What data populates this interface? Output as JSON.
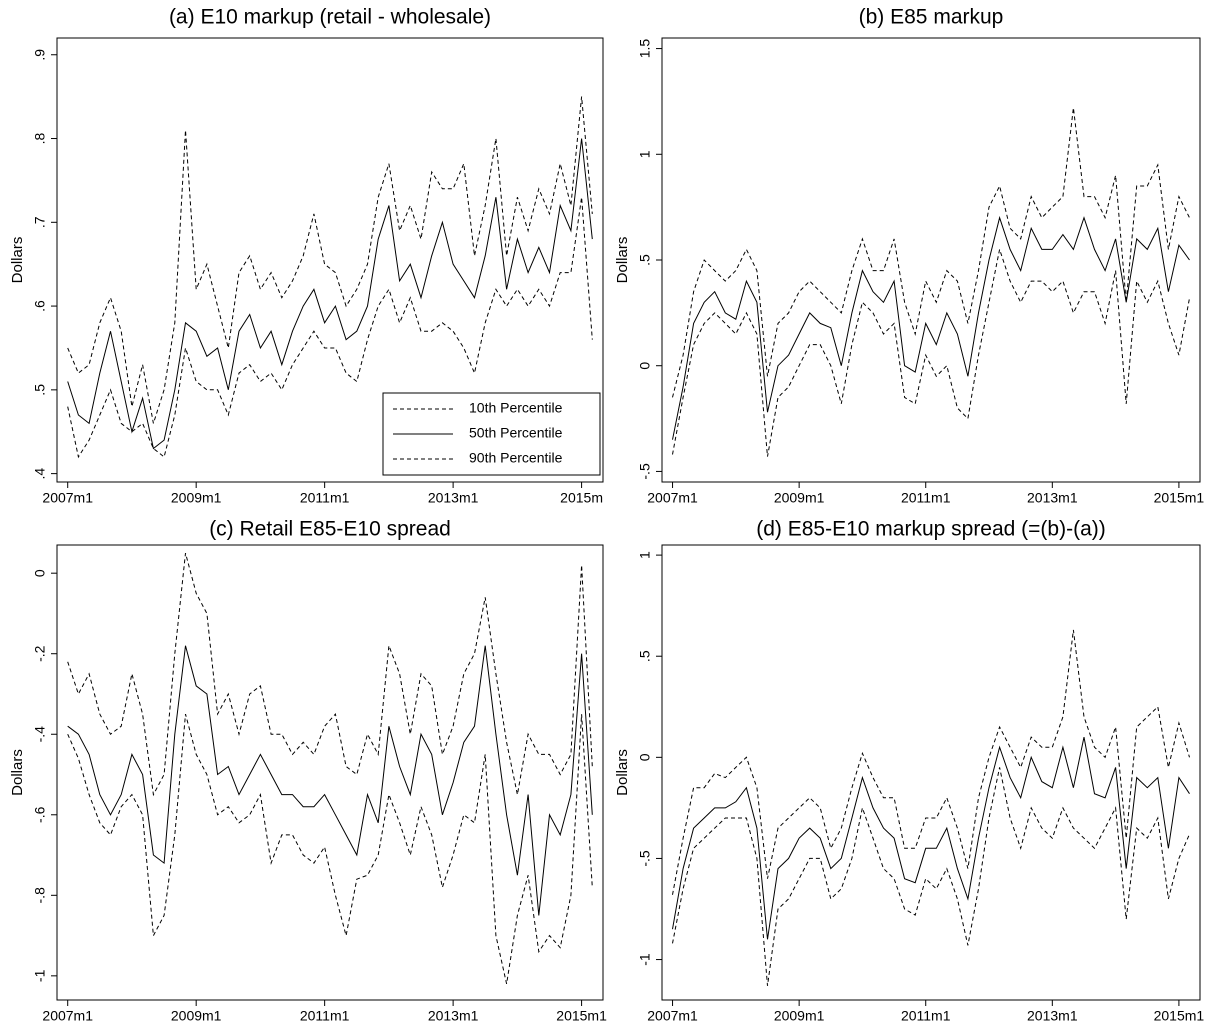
{
  "chart_data": [
    {
      "type": "line",
      "title": "(a) E10 markup (retail - wholesale)",
      "y_label": "Dollars",
      "legend": "lower right",
      "x": [
        0,
        2,
        4,
        6,
        8,
        10,
        12,
        14,
        16,
        18,
        20,
        22,
        24,
        26,
        28,
        30,
        32,
        34,
        36,
        38,
        40,
        42,
        44,
        46,
        48,
        50,
        52,
        54,
        56,
        58,
        60,
        62,
        64,
        66,
        68,
        70,
        72,
        74,
        76,
        78,
        80,
        82,
        84,
        86,
        88,
        90,
        92,
        94,
        96,
        98
      ],
      "xlim": [
        -2,
        100
      ],
      "xticks": [
        {
          "value": 0,
          "label": "2007m1"
        },
        {
          "value": 24,
          "label": "2009m1"
        },
        {
          "value": 48,
          "label": "2011m1"
        },
        {
          "value": 72,
          "label": "2013m1"
        },
        {
          "value": 96,
          "label": "2015m"
        }
      ],
      "ylim": [
        0.39,
        0.92
      ],
      "yticks": [
        {
          "value": 0.4,
          "label": ".4"
        },
        {
          "value": 0.5,
          "label": ".5"
        },
        {
          "value": 0.6,
          "label": ".6"
        },
        {
          "value": 0.7,
          "label": ".7"
        },
        {
          "value": 0.8,
          "label": ".8"
        },
        {
          "value": 0.9,
          "label": ".9"
        }
      ],
      "series": [
        {
          "name": "10th Percentile",
          "color": "#000000",
          "style": "dashed",
          "values": [
            0.48,
            0.42,
            0.44,
            0.47,
            0.5,
            0.46,
            0.45,
            0.46,
            0.43,
            0.42,
            0.47,
            0.55,
            0.51,
            0.5,
            0.5,
            0.47,
            0.52,
            0.53,
            0.51,
            0.52,
            0.5,
            0.53,
            0.55,
            0.57,
            0.55,
            0.55,
            0.52,
            0.51,
            0.56,
            0.6,
            0.62,
            0.58,
            0.61,
            0.57,
            0.57,
            0.58,
            0.57,
            0.55,
            0.52,
            0.58,
            0.62,
            0.6,
            0.62,
            0.6,
            0.62,
            0.6,
            0.64,
            0.64,
            0.73,
            0.56
          ]
        },
        {
          "name": "50th Percentile",
          "color": "#000000",
          "style": "solid",
          "values": [
            0.51,
            0.47,
            0.46,
            0.52,
            0.57,
            0.51,
            0.45,
            0.49,
            0.43,
            0.44,
            0.5,
            0.58,
            0.57,
            0.54,
            0.55,
            0.5,
            0.57,
            0.59,
            0.55,
            0.57,
            0.53,
            0.57,
            0.6,
            0.62,
            0.58,
            0.6,
            0.56,
            0.57,
            0.6,
            0.68,
            0.72,
            0.63,
            0.65,
            0.61,
            0.66,
            0.7,
            0.65,
            0.63,
            0.61,
            0.66,
            0.73,
            0.62,
            0.68,
            0.64,
            0.67,
            0.64,
            0.72,
            0.69,
            0.8,
            0.68
          ]
        },
        {
          "name": "90th Percentile",
          "color": "#000000",
          "style": "dashed",
          "values": [
            0.55,
            0.52,
            0.53,
            0.58,
            0.61,
            0.57,
            0.48,
            0.53,
            0.46,
            0.5,
            0.58,
            0.81,
            0.62,
            0.65,
            0.6,
            0.55,
            0.64,
            0.66,
            0.62,
            0.64,
            0.61,
            0.63,
            0.66,
            0.71,
            0.65,
            0.64,
            0.6,
            0.62,
            0.65,
            0.73,
            0.77,
            0.69,
            0.72,
            0.68,
            0.76,
            0.74,
            0.74,
            0.77,
            0.66,
            0.72,
            0.8,
            0.66,
            0.73,
            0.69,
            0.74,
            0.71,
            0.77,
            0.72,
            0.85,
            0.71
          ]
        }
      ]
    },
    {
      "type": "line",
      "title": "(b) E85 markup",
      "y_label": "Dollars",
      "x": [
        0,
        2,
        4,
        6,
        8,
        10,
        12,
        14,
        16,
        18,
        20,
        22,
        24,
        26,
        28,
        30,
        32,
        34,
        36,
        38,
        40,
        42,
        44,
        46,
        48,
        50,
        52,
        54,
        56,
        58,
        60,
        62,
        64,
        66,
        68,
        70,
        72,
        74,
        76,
        78,
        80,
        82,
        84,
        86,
        88,
        90,
        92,
        94,
        96,
        98
      ],
      "xlim": [
        -2,
        100
      ],
      "xticks": [
        {
          "value": 0,
          "label": "2007m1"
        },
        {
          "value": 24,
          "label": "2009m1"
        },
        {
          "value": 48,
          "label": "2011m1"
        },
        {
          "value": 72,
          "label": "2013m1"
        },
        {
          "value": 96,
          "label": "2015m1"
        }
      ],
      "ylim": [
        -0.55,
        1.55
      ],
      "yticks": [
        {
          "value": -0.5,
          "label": "-.5"
        },
        0,
        {
          "value": 0.5,
          "label": ".5"
        },
        1,
        1.5
      ],
      "series": [
        {
          "name": "10th Percentile",
          "color": "#000000",
          "style": "dashed",
          "values": [
            -0.42,
            -0.15,
            0.1,
            0.2,
            0.25,
            0.2,
            0.15,
            0.25,
            0.15,
            -0.43,
            -0.15,
            -0.1,
            0.0,
            0.1,
            0.1,
            0.0,
            -0.18,
            0.1,
            0.3,
            0.25,
            0.15,
            0.2,
            -0.15,
            -0.18,
            0.05,
            -0.05,
            0.0,
            -0.2,
            -0.25,
            0.05,
            0.3,
            0.55,
            0.4,
            0.3,
            0.4,
            0.4,
            0.35,
            0.4,
            0.25,
            0.35,
            0.35,
            0.2,
            0.45,
            -0.18,
            0.4,
            0.3,
            0.4,
            0.2,
            0.05,
            0.32
          ]
        },
        {
          "name": "50th Percentile",
          "color": "#000000",
          "style": "solid",
          "values": [
            -0.35,
            -0.1,
            0.2,
            0.3,
            0.35,
            0.25,
            0.22,
            0.4,
            0.3,
            -0.22,
            0.0,
            0.05,
            0.15,
            0.25,
            0.2,
            0.18,
            0.0,
            0.25,
            0.45,
            0.35,
            0.3,
            0.4,
            0.0,
            -0.03,
            0.2,
            0.1,
            0.25,
            0.15,
            -0.05,
            0.25,
            0.5,
            0.7,
            0.55,
            0.45,
            0.65,
            0.55,
            0.55,
            0.62,
            0.55,
            0.7,
            0.55,
            0.45,
            0.6,
            0.3,
            0.6,
            0.55,
            0.65,
            0.35,
            0.57,
            0.5
          ]
        },
        {
          "name": "90th Percentile",
          "color": "#000000",
          "style": "dashed",
          "values": [
            -0.15,
            0.05,
            0.35,
            0.5,
            0.45,
            0.4,
            0.45,
            0.55,
            0.45,
            -0.05,
            0.2,
            0.25,
            0.35,
            0.4,
            0.35,
            0.3,
            0.25,
            0.45,
            0.6,
            0.45,
            0.45,
            0.6,
            0.3,
            0.15,
            0.4,
            0.3,
            0.45,
            0.4,
            0.2,
            0.45,
            0.75,
            0.85,
            0.65,
            0.6,
            0.8,
            0.7,
            0.75,
            0.8,
            1.22,
            0.8,
            0.8,
            0.7,
            0.9,
            0.3,
            0.85,
            0.85,
            0.95,
            0.55,
            0.8,
            0.7
          ]
        }
      ]
    },
    {
      "type": "line",
      "title": "(c) Retail E85-E10 spread",
      "y_label": "Dollars",
      "x": [
        0,
        2,
        4,
        6,
        8,
        10,
        12,
        14,
        16,
        18,
        20,
        22,
        24,
        26,
        28,
        30,
        32,
        34,
        36,
        38,
        40,
        42,
        44,
        46,
        48,
        50,
        52,
        54,
        56,
        58,
        60,
        62,
        64,
        66,
        68,
        70,
        72,
        74,
        76,
        78,
        80,
        82,
        84,
        86,
        88,
        90,
        92,
        94,
        96,
        98
      ],
      "xlim": [
        -2,
        100
      ],
      "xticks": [
        {
          "value": 0,
          "label": "2007m1"
        },
        {
          "value": 24,
          "label": "2009m1"
        },
        {
          "value": 48,
          "label": "2011m1"
        },
        {
          "value": 72,
          "label": "2013m1"
        },
        {
          "value": 96,
          "label": "2015m1"
        }
      ],
      "ylim": [
        -1.06,
        0.07
      ],
      "yticks": [
        -1,
        {
          "value": -0.8,
          "label": "-.8"
        },
        {
          "value": -0.6,
          "label": "-.6"
        },
        {
          "value": -0.4,
          "label": "-.4"
        },
        {
          "value": -0.2,
          "label": "-.2"
        },
        0
      ],
      "series": [
        {
          "name": "10th Percentile",
          "color": "#000000",
          "style": "dashed",
          "values": [
            -0.4,
            -0.46,
            -0.55,
            -0.62,
            -0.65,
            -0.58,
            -0.55,
            -0.6,
            -0.9,
            -0.85,
            -0.65,
            -0.35,
            -0.45,
            -0.5,
            -0.6,
            -0.58,
            -0.62,
            -0.6,
            -0.55,
            -0.72,
            -0.65,
            -0.65,
            -0.7,
            -0.72,
            -0.68,
            -0.8,
            -0.9,
            -0.76,
            -0.75,
            -0.7,
            -0.55,
            -0.62,
            -0.7,
            -0.58,
            -0.65,
            -0.78,
            -0.7,
            -0.6,
            -0.62,
            -0.45,
            -0.9,
            -1.02,
            -0.85,
            -0.75,
            -0.94,
            -0.9,
            -0.93,
            -0.8,
            -0.35,
            -0.78
          ]
        },
        {
          "name": "50th Percentile",
          "color": "#000000",
          "style": "solid",
          "values": [
            -0.38,
            -0.4,
            -0.45,
            -0.55,
            -0.6,
            -0.55,
            -0.45,
            -0.5,
            -0.7,
            -0.72,
            -0.4,
            -0.18,
            -0.28,
            -0.3,
            -0.5,
            -0.48,
            -0.55,
            -0.5,
            -0.45,
            -0.5,
            -0.55,
            -0.55,
            -0.58,
            -0.58,
            -0.55,
            -0.6,
            -0.65,
            -0.7,
            -0.55,
            -0.62,
            -0.38,
            -0.48,
            -0.55,
            -0.4,
            -0.45,
            -0.6,
            -0.52,
            -0.42,
            -0.38,
            -0.18,
            -0.4,
            -0.6,
            -0.75,
            -0.55,
            -0.85,
            -0.6,
            -0.65,
            -0.55,
            -0.2,
            -0.6
          ]
        },
        {
          "name": "90th Percentile",
          "color": "#000000",
          "style": "dashed",
          "values": [
            -0.22,
            -0.3,
            -0.25,
            -0.35,
            -0.4,
            -0.38,
            -0.25,
            -0.35,
            -0.55,
            -0.5,
            -0.2,
            0.05,
            -0.05,
            -0.1,
            -0.35,
            -0.3,
            -0.4,
            -0.3,
            -0.28,
            -0.4,
            -0.4,
            -0.45,
            -0.42,
            -0.45,
            -0.38,
            -0.35,
            -0.48,
            -0.5,
            -0.4,
            -0.45,
            -0.18,
            -0.25,
            -0.4,
            -0.25,
            -0.28,
            -0.45,
            -0.38,
            -0.25,
            -0.2,
            -0.06,
            -0.25,
            -0.42,
            -0.55,
            -0.4,
            -0.45,
            -0.45,
            -0.5,
            -0.45,
            0.02,
            -0.48
          ]
        }
      ]
    },
    {
      "type": "line",
      "title": "(d) E85-E10 markup spread (=(b)-(a))",
      "y_label": "Dollars",
      "x": [
        0,
        2,
        4,
        6,
        8,
        10,
        12,
        14,
        16,
        18,
        20,
        22,
        24,
        26,
        28,
        30,
        32,
        34,
        36,
        38,
        40,
        42,
        44,
        46,
        48,
        50,
        52,
        54,
        56,
        58,
        60,
        62,
        64,
        66,
        68,
        70,
        72,
        74,
        76,
        78,
        80,
        82,
        84,
        86,
        88,
        90,
        92,
        94,
        96,
        98
      ],
      "xlim": [
        -2,
        100
      ],
      "xticks": [
        {
          "value": 0,
          "label": "2007m1"
        },
        {
          "value": 24,
          "label": "2009m1"
        },
        {
          "value": 48,
          "label": "2011m1"
        },
        {
          "value": 72,
          "label": "2013m1"
        },
        {
          "value": 96,
          "label": "2015m1"
        }
      ],
      "ylim": [
        -1.2,
        1.05
      ],
      "yticks": [
        -1,
        {
          "value": -0.5,
          "label": "-.5"
        },
        0,
        {
          "value": 0.5,
          "label": ".5"
        },
        1
      ],
      "series": [
        {
          "name": "10th Percentile",
          "color": "#000000",
          "style": "dashed",
          "values": [
            -0.92,
            -0.65,
            -0.45,
            -0.4,
            -0.35,
            -0.3,
            -0.3,
            -0.3,
            -0.5,
            -1.13,
            -0.75,
            -0.7,
            -0.6,
            -0.5,
            -0.5,
            -0.7,
            -0.65,
            -0.5,
            -0.25,
            -0.4,
            -0.55,
            -0.6,
            -0.75,
            -0.78,
            -0.6,
            -0.65,
            -0.55,
            -0.7,
            -0.93,
            -0.65,
            -0.3,
            -0.05,
            -0.3,
            -0.45,
            -0.25,
            -0.35,
            -0.4,
            -0.25,
            -0.35,
            -0.4,
            -0.45,
            -0.35,
            -0.25,
            -0.8,
            -0.35,
            -0.4,
            -0.3,
            -0.7,
            -0.5,
            -0.38
          ]
        },
        {
          "name": "50th Percentile",
          "color": "#000000",
          "style": "solid",
          "values": [
            -0.85,
            -0.55,
            -0.35,
            -0.3,
            -0.25,
            -0.25,
            -0.22,
            -0.15,
            -0.35,
            -0.9,
            -0.55,
            -0.5,
            -0.4,
            -0.35,
            -0.4,
            -0.55,
            -0.5,
            -0.3,
            -0.1,
            -0.25,
            -0.35,
            -0.4,
            -0.6,
            -0.62,
            -0.45,
            -0.45,
            -0.35,
            -0.55,
            -0.7,
            -0.4,
            -0.15,
            0.05,
            -0.1,
            -0.2,
            0.0,
            -0.12,
            -0.15,
            0.05,
            -0.15,
            0.1,
            -0.18,
            -0.2,
            -0.05,
            -0.55,
            -0.1,
            -0.15,
            -0.1,
            -0.45,
            -0.1,
            -0.18
          ]
        },
        {
          "name": "90th Percentile",
          "color": "#000000",
          "style": "dashed",
          "values": [
            -0.68,
            -0.4,
            -0.15,
            -0.15,
            -0.08,
            -0.1,
            -0.05,
            0.0,
            -0.15,
            -0.6,
            -0.35,
            -0.3,
            -0.25,
            -0.2,
            -0.25,
            -0.45,
            -0.35,
            -0.15,
            0.02,
            -0.1,
            -0.2,
            -0.2,
            -0.45,
            -0.45,
            -0.3,
            -0.3,
            -0.2,
            -0.35,
            -0.55,
            -0.2,
            0.0,
            0.15,
            0.05,
            -0.05,
            0.1,
            0.05,
            0.05,
            0.2,
            0.63,
            0.2,
            0.05,
            0.0,
            0.15,
            -0.4,
            0.15,
            0.2,
            0.25,
            -0.05,
            0.17,
            0.0
          ]
        }
      ]
    }
  ]
}
